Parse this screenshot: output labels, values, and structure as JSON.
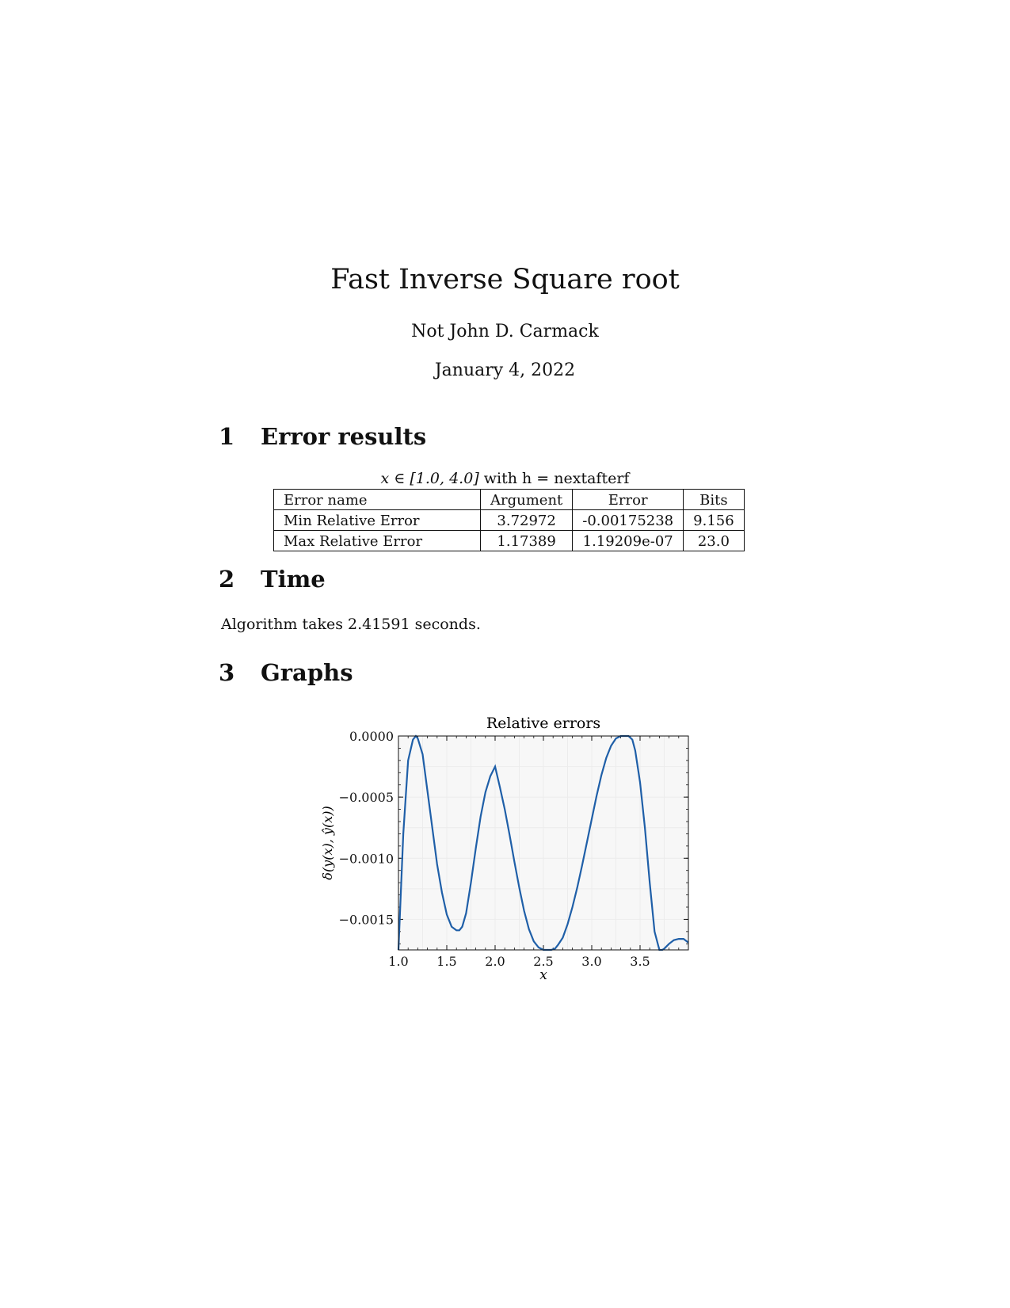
{
  "header": {
    "title": "Fast Inverse Square root",
    "author": "Not John D. Carmack",
    "date": "January 4, 2022"
  },
  "sections": [
    {
      "num": "1",
      "title": "Error results"
    },
    {
      "num": "2",
      "title": "Time"
    },
    {
      "num": "3",
      "title": "Graphs"
    }
  ],
  "table": {
    "caption_math": "x ∈ [1.0, 4.0]",
    "caption_text": " with h = nextafterf",
    "headers": [
      "Error name",
      "Argument",
      "Error",
      "Bits"
    ],
    "rows": [
      [
        "Min Relative Error",
        "3.72972",
        "-0.00175238",
        "9.156"
      ],
      [
        "Max Relative Error",
        "1.17389",
        "1.19209e-07",
        "23.0"
      ]
    ]
  },
  "time_text": "Algorithm takes 2.41591 seconds.",
  "chart_data": {
    "type": "line",
    "title": "Relative errors",
    "xlabel": "x",
    "ylabel": "δ(y(x), ŷ(x))",
    "xlim": [
      1.0,
      4.0
    ],
    "ylim": [
      -0.00175,
      0.0
    ],
    "xticks": [
      1.0,
      1.5,
      2.0,
      2.5,
      3.0,
      3.5
    ],
    "xtick_labels": [
      "1.0",
      "1.5",
      "2.0",
      "2.5",
      "3.0",
      "3.5"
    ],
    "yticks": [
      0.0,
      -0.0005,
      -0.001,
      -0.0015
    ],
    "ytick_labels": [
      "0.0000",
      "−0.0005",
      "−0.0010",
      "−0.0015"
    ],
    "line_color": "#1f5fa8",
    "series": [
      {
        "x": [
          1.0,
          1.05,
          1.1,
          1.15,
          1.18,
          1.2,
          1.25,
          1.3,
          1.35,
          1.4,
          1.45,
          1.5,
          1.55,
          1.6,
          1.63,
          1.66,
          1.7,
          1.75,
          1.8,
          1.85,
          1.9,
          1.95,
          2.0,
          2.05,
          2.1,
          2.15,
          2.2,
          2.25,
          2.3,
          2.35,
          2.4,
          2.45,
          2.5,
          2.55,
          2.58,
          2.62,
          2.65,
          2.7,
          2.75,
          2.8,
          2.85,
          2.9,
          2.95,
          3.0,
          3.05,
          3.1,
          3.15,
          3.2,
          3.25,
          3.3,
          3.35,
          3.38,
          3.42,
          3.45,
          3.5,
          3.55,
          3.6,
          3.65,
          3.7,
          3.73,
          3.75,
          3.8,
          3.85,
          3.9,
          3.95,
          4.0
        ],
        "y": [
          -0.00175,
          -0.0008,
          -0.0002,
          -3e-05,
          0.0,
          -2e-05,
          -0.00015,
          -0.00045,
          -0.00075,
          -0.00105,
          -0.00128,
          -0.00146,
          -0.00156,
          -0.00159,
          -0.00159,
          -0.00156,
          -0.00145,
          -0.0012,
          -0.00092,
          -0.00066,
          -0.00046,
          -0.00033,
          -0.00025,
          -0.00042,
          -0.0006,
          -0.00081,
          -0.00103,
          -0.00124,
          -0.00143,
          -0.00158,
          -0.00168,
          -0.00173,
          -0.00175,
          -0.00175,
          -0.00175,
          -0.00174,
          -0.00171,
          -0.00165,
          -0.00154,
          -0.0014,
          -0.00124,
          -0.00106,
          -0.00087,
          -0.00068,
          -0.00049,
          -0.00032,
          -0.00018,
          -8e-05,
          -2e-05,
          0.0,
          0.0,
          0.0,
          -3e-05,
          -0.00012,
          -0.00038,
          -0.00075,
          -0.0012,
          -0.0016,
          -0.00175,
          -0.00175,
          -0.00174,
          -0.0017,
          -0.00167,
          -0.00166,
          -0.00166,
          -0.00169
        ]
      }
    ]
  }
}
